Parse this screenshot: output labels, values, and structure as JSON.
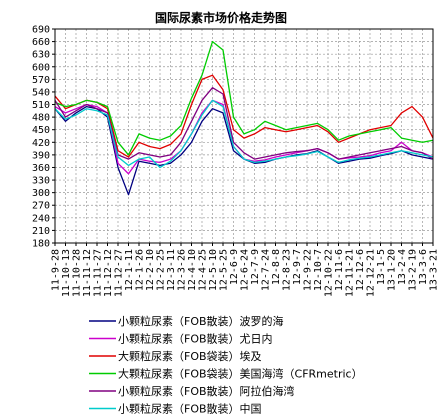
{
  "chart_data": {
    "type": "line",
    "title": "国际尿素市场价格走势图",
    "xlabel": "",
    "ylabel": "",
    "ylim": [
      180,
      690
    ],
    "yticks": [
      180,
      210,
      240,
      270,
      300,
      330,
      360,
      390,
      420,
      450,
      480,
      510,
      540,
      570,
      600,
      630,
      660,
      690
    ],
    "grid": true,
    "legend_position": "bottom",
    "categories": [
      "11-9-28",
      "11-10-13",
      "11-10-28",
      "11-11-12",
      "11-11-27",
      "11-12-12",
      "11-12-27",
      "12-1-11",
      "12-1-26",
      "12-2-10",
      "12-2-25",
      "12-3-11",
      "12-3-26",
      "12-4-10",
      "12-4-25",
      "12-5-10",
      "12-5-25",
      "12-6-9",
      "12-6-24",
      "12-7-9",
      "12-7-24",
      "12-8-8",
      "12-8-23",
      "12-9-7",
      "12-9-22",
      "12-10-7",
      "12-10-22",
      "12-11-6",
      "12-11-21",
      "12-12-6",
      "12-12-21",
      "13-1-5",
      "13-1-20",
      "13-2-4",
      "13-2-19",
      "13-3-6",
      "13-3-21"
    ],
    "series": [
      {
        "name": "小颗粒尿素（FOB散装）波罗的海",
        "color": "#000080",
        "values": [
          500,
          470,
          490,
          505,
          500,
          480,
          360,
          295,
          375,
          370,
          365,
          370,
          390,
          420,
          470,
          500,
          490,
          400,
          380,
          370,
          372,
          380,
          385,
          390,
          393,
          400,
          385,
          370,
          375,
          380,
          382,
          388,
          393,
          400,
          390,
          385,
          380
        ]
      },
      {
        "name": "小颗粒尿素（FOB散装）尤日内",
        "color": "#cc00cc",
        "values": [
          505,
          490,
          500,
          510,
          505,
          490,
          370,
          345,
          380,
          375,
          372,
          380,
          400,
          440,
          490,
          520,
          510,
          410,
          380,
          375,
          378,
          385,
          390,
          395,
          400,
          405,
          395,
          380,
          383,
          385,
          388,
          395,
          400,
          420,
          400,
          395,
          385
        ]
      },
      {
        "name": "大颗粒尿素（FOB袋装）埃及",
        "color": "#e00000",
        "values": [
          530,
          500,
          510,
          520,
          515,
          500,
          400,
          385,
          420,
          410,
          405,
          415,
          440,
          510,
          570,
          580,
          545,
          450,
          430,
          440,
          455,
          450,
          445,
          450,
          455,
          460,
          445,
          420,
          430,
          440,
          450,
          455,
          460,
          490,
          505,
          480,
          430
        ]
      },
      {
        "name": "大颗粒尿素（FOB袋装）美国海湾（CFRmetric）",
        "color": "#00cc00",
        "values": [
          515,
          505,
          510,
          520,
          515,
          505,
          420,
          390,
          440,
          430,
          425,
          435,
          460,
          525,
          580,
          660,
          640,
          480,
          440,
          450,
          470,
          460,
          450,
          455,
          460,
          465,
          450,
          425,
          435,
          440,
          445,
          450,
          455,
          430,
          425,
          420,
          425
        ]
      },
      {
        "name": "小颗粒尿素（FOB散装）阿拉伯海湾",
        "color": "#800080",
        "values": [
          520,
          480,
          495,
          510,
          500,
          490,
          390,
          380,
          395,
          390,
          385,
          390,
          420,
          470,
          520,
          550,
          535,
          420,
          395,
          380,
          385,
          390,
          395,
          398,
          400,
          405,
          395,
          380,
          385,
          390,
          395,
          400,
          405,
          410,
          400,
          395,
          380
        ]
      },
      {
        "name": "小颗粒尿素（FOB散装）中国",
        "color": "#00cccc",
        "values": [
          500,
          475,
          485,
          500,
          495,
          485,
          385,
          365,
          380,
          385,
          360,
          375,
          400,
          440,
          485,
          520,
          505,
          410,
          380,
          372,
          375,
          380,
          385,
          388,
          392,
          398,
          385,
          372,
          378,
          382,
          385,
          390,
          395,
          400,
          395,
          390,
          385
        ]
      }
    ]
  }
}
